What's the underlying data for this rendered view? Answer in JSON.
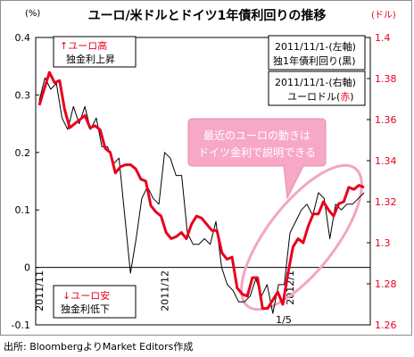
{
  "chart_data": {
    "type": "line",
    "title": "ユーロ/米ドルとドイツ1年債利回りの推移",
    "left_axis_unit": "(%)",
    "right_axis_unit": "(ドル)",
    "left_ticks": [
      "0.4",
      "0.3",
      "0.2",
      "0.1",
      "0",
      "-0.1"
    ],
    "right_ticks": [
      "1.4",
      "1.38",
      "1.36",
      "1.34",
      "1.32",
      "1.3",
      "1.28",
      "1.26"
    ],
    "ylim_left": [
      -0.1,
      0.4
    ],
    "ylim_right": [
      1.26,
      1.4
    ],
    "x_ticks": [
      "2011/11",
      "2011/12",
      "2012/1"
    ],
    "x_tick_index": [
      0,
      22,
      44
    ],
    "extra_x_label": "1/5",
    "grid": false,
    "series": [
      {
        "name": "独1年債利回り",
        "axis": "left",
        "color": "#000000",
        "values": [
          0.29,
          0.33,
          0.31,
          0.32,
          0.26,
          0.24,
          0.28,
          0.25,
          0.28,
          0.24,
          0.26,
          0.21,
          0.21,
          0.18,
          0.19,
          0.09,
          -0.01,
          0.05,
          0.12,
          0.14,
          0.12,
          0.11,
          0.2,
          0.19,
          0.16,
          0.16,
          0.06,
          0.04,
          0.04,
          0.05,
          0.04,
          0.08,
          0.0,
          -0.03,
          -0.04,
          -0.06,
          -0.06,
          -0.05,
          -0.02,
          -0.05,
          -0.03,
          -0.08,
          -0.03,
          -0.03,
          0.06,
          0.08,
          0.1,
          0.11,
          0.09,
          0.13,
          0.12,
          0.05,
          0.11,
          0.1,
          0.11,
          0.11,
          0.12,
          0.13
        ]
      },
      {
        "name": "ユーロドル",
        "axis": "right",
        "color": "#e8001c",
        "values": [
          1.367,
          1.375,
          1.383,
          1.378,
          1.379,
          1.365,
          1.356,
          1.358,
          1.36,
          1.362,
          1.356,
          1.357,
          1.355,
          1.346,
          1.344,
          1.334,
          1.337,
          1.338,
          1.338,
          1.336,
          1.331,
          1.33,
          1.318,
          1.315,
          1.313,
          1.305,
          1.302,
          1.303,
          1.305,
          1.302,
          1.309,
          1.313,
          1.312,
          1.309,
          1.306,
          1.306,
          1.295,
          1.292,
          1.293,
          1.278,
          1.275,
          1.274,
          1.283,
          1.283,
          1.268,
          1.268,
          1.272,
          1.276,
          1.27,
          1.285,
          1.298,
          1.302,
          1.3,
          1.308,
          1.314,
          1.314,
          1.32,
          1.316,
          1.313,
          1.319,
          1.32,
          1.327,
          1.326,
          1.328,
          1.327
        ]
      }
    ],
    "callout": [
      "最近のユーロの動きは",
      "ドイツ金利で説明できる"
    ],
    "legend_box1": [
      "2011/11/1-(左軸)",
      "独1年債利回り(黒)"
    ],
    "legend_box2": [
      "2011/11/1-(右軸)",
      "ユーロドル(",
      "赤",
      ")"
    ],
    "annot_top": [
      "↑ユーロ高",
      "独金利上昇"
    ],
    "annot_bottom": [
      "↓ユーロ安",
      "独金利低下"
    ]
  },
  "source": "出所: BloombergよりMarket Editors作成"
}
